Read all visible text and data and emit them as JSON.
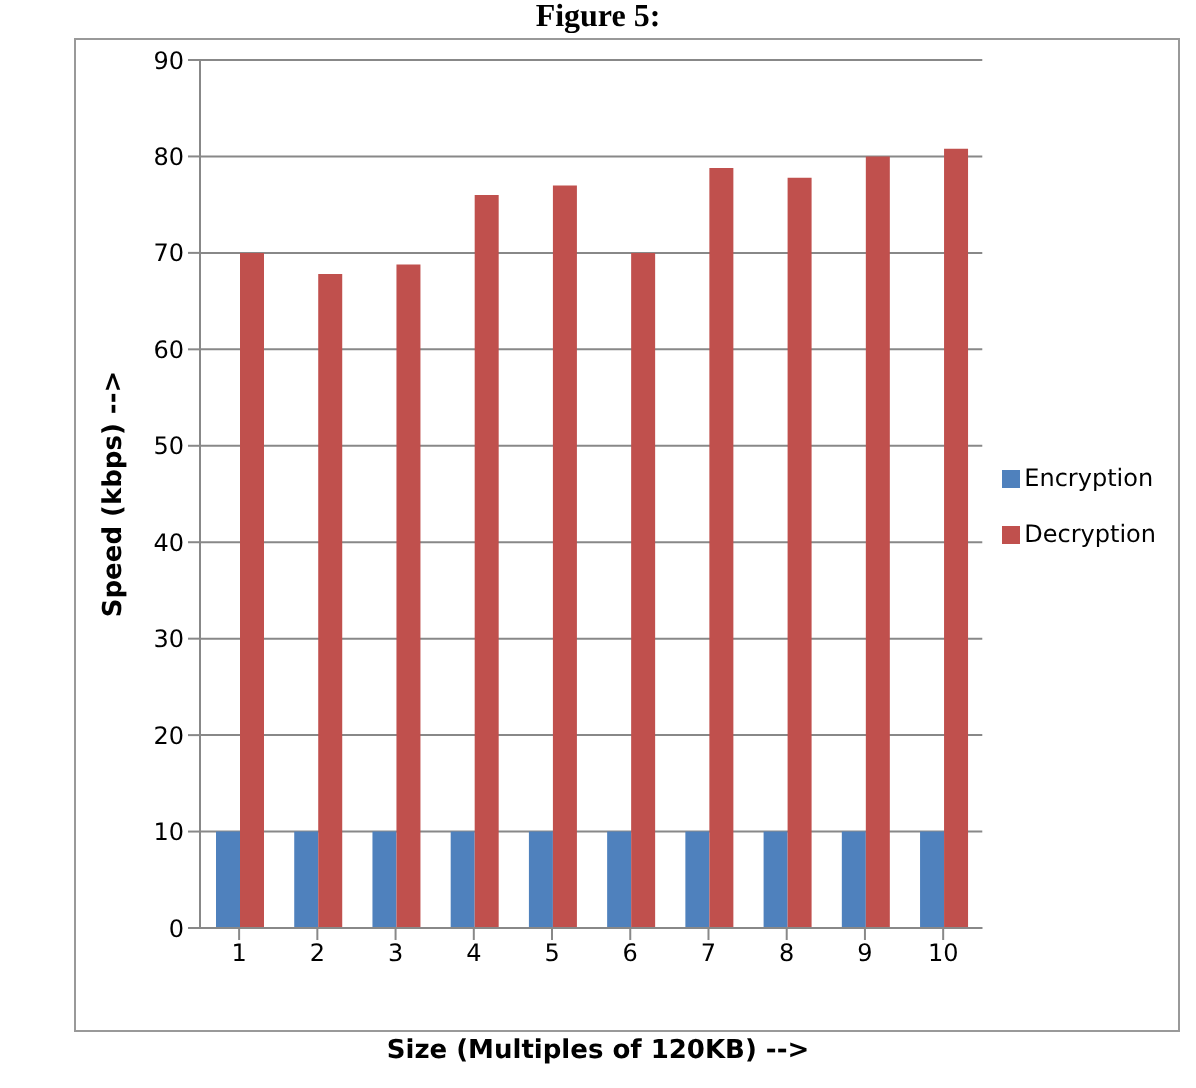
{
  "chart_data": {
    "type": "bar",
    "title": "Figure 5:",
    "xlabel": "Size (Multiples of 120KB) -->",
    "ylabel": "Speed (kbps) -->",
    "categories": [
      "1",
      "2",
      "3",
      "4",
      "5",
      "6",
      "7",
      "8",
      "9",
      "10"
    ],
    "series": [
      {
        "name": "Encryption",
        "color": "#4f81bd",
        "values": [
          10,
          10,
          10,
          10,
          10,
          10,
          10,
          10,
          10,
          10
        ]
      },
      {
        "name": "Decryption",
        "color": "#c0504d",
        "values": [
          70,
          67.8,
          68.8,
          76,
          77,
          70,
          78.8,
          77.8,
          80,
          80.8
        ]
      }
    ],
    "ylim": [
      0,
      90
    ],
    "yticks": [
      0,
      10,
      20,
      30,
      40,
      50,
      60,
      70,
      80,
      90
    ],
    "grid": "y",
    "legend": "right"
  }
}
